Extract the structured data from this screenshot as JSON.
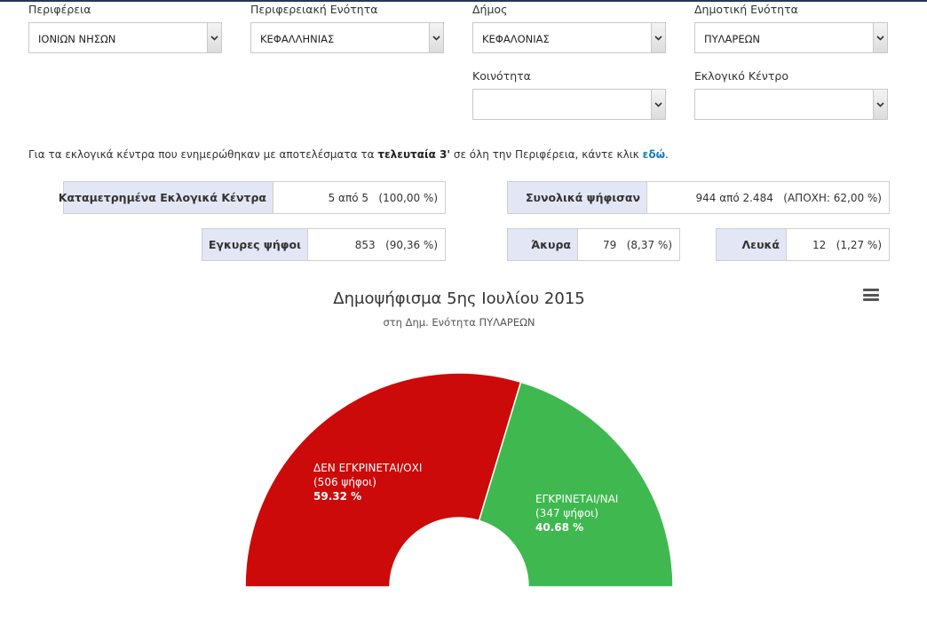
{
  "filters": {
    "periferia": {
      "label": "Περιφέρεια",
      "value": "ΙΟΝΙΩΝ ΝΗΣΩΝ"
    },
    "periferiaki_enotita": {
      "label": "Περιφερειακή Ενότητα",
      "value": "ΚΕΦΑΛΛΗΝΙΑΣ"
    },
    "dimos": {
      "label": "Δήμος",
      "value": "ΚΕΦΑΛΟΝΙΑΣ"
    },
    "dimotiki_enotita": {
      "label": "Δημοτική Ενότητα",
      "value": "ΠΥΛΑΡΕΩΝ"
    },
    "koinotita": {
      "label": "Κοινότητα",
      "value": ""
    },
    "eklogiko_kentro": {
      "label": "Εκλογικό Κέντρο",
      "value": ""
    }
  },
  "info": {
    "text_before": "Για τα εκλογικά κέντρα που ενημερώθηκαν με αποτελέσματα τα ",
    "bold": "τελευταία 3'",
    "text_middle": " σε όλη την Περιφέρεια, κάντε κλικ ",
    "link": "εδώ",
    "text_after": "."
  },
  "stats": {
    "counted": {
      "label": "Καταμετρημένα Εκλογικά Κέντρα",
      "value": "5 από 5   (100,00 %)"
    },
    "voted": {
      "label": "Συνολικά ψήφισαν",
      "value": "944 από 2.484   (ΑΠΟΧΗ: 62,00 %)"
    },
    "valid": {
      "label": "Εγκυρες ψήφοι",
      "value": "853   (90,36 %)"
    },
    "invalid": {
      "label": "Άκυρα",
      "value": "79   (8,37 %)"
    },
    "blank": {
      "label": "Λευκά",
      "value": "12   (1,27 %)"
    }
  },
  "chart": {
    "title": "Δημοψήφισμα 5ης Ιουλίου 2015",
    "subtitle": "στη Δημ. Ενότητα ΠΥΛΑΡΕΩΝ",
    "menu_icon": "hamburger-menu-icon"
  },
  "chart_data": {
    "type": "pie",
    "variant": "semi-circle donut",
    "series": [
      {
        "name": "ΔΕΝ ΕΓΚΡΙΝΕΤΑΙ/ΟΧΙ",
        "votes_label": "(506 ψήφοι)",
        "percent_label": "59.32 %",
        "value": 59.32,
        "color": "#cc0a0a"
      },
      {
        "name": "ΕΓΚΡΙΝΕΤΑΙ/ΝΑΙ",
        "votes_label": "(347 ψήφοι)",
        "percent_label": "40.68 %",
        "value": 40.68,
        "color": "#3fb94f"
      }
    ]
  },
  "colors": {
    "label_bg": "#e3e6f5",
    "link": "#1a7bb9",
    "top_border": "#1f3a5a"
  }
}
